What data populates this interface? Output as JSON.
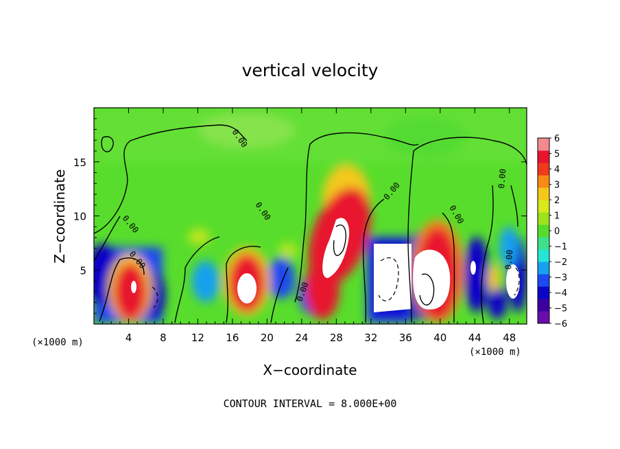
{
  "chart_data": {
    "type": "heatmap",
    "title": "vertical velocity",
    "xlabel": "X−coordinate",
    "ylabel": "Z−coordinate",
    "x_unit_left": "(×1000 m)",
    "x_unit_right": "(×1000 m)",
    "footer": "CONTOUR INTERVAL = 8.000E+00",
    "xlim": [
      0,
      50
    ],
    "ylim": [
      0,
      20
    ],
    "x_ticks": [
      4,
      8,
      12,
      16,
      20,
      24,
      28,
      32,
      36,
      40,
      44,
      48
    ],
    "x_tick_labels": [
      "4",
      "8",
      "12",
      "16",
      "20",
      "24",
      "28",
      "32",
      "36",
      "40",
      "44",
      "48"
    ],
    "y_ticks": [
      5,
      10,
      15
    ],
    "y_tick_labels": [
      "5",
      "10",
      "15"
    ],
    "colorbar": {
      "range": [
        -6,
        6
      ],
      "tick_labels": [
        "6",
        "5",
        "4",
        "3",
        "2",
        "1",
        "0",
        "−1",
        "−2",
        "−3",
        "−4",
        "−5",
        "−6"
      ],
      "colors": [
        "#6a0dad",
        "#3d00a0",
        "#0b05c8",
        "#1a4af0",
        "#18a0f0",
        "#25e6d6",
        "#3ee08a",
        "#55dd2a",
        "#9ee21e",
        "#d8e81a",
        "#f4c81a",
        "#f88a14",
        "#f03a1c",
        "#e8142e",
        "#f28a90"
      ]
    },
    "contour_label": "0.00",
    "grid": false,
    "legend": "right"
  }
}
